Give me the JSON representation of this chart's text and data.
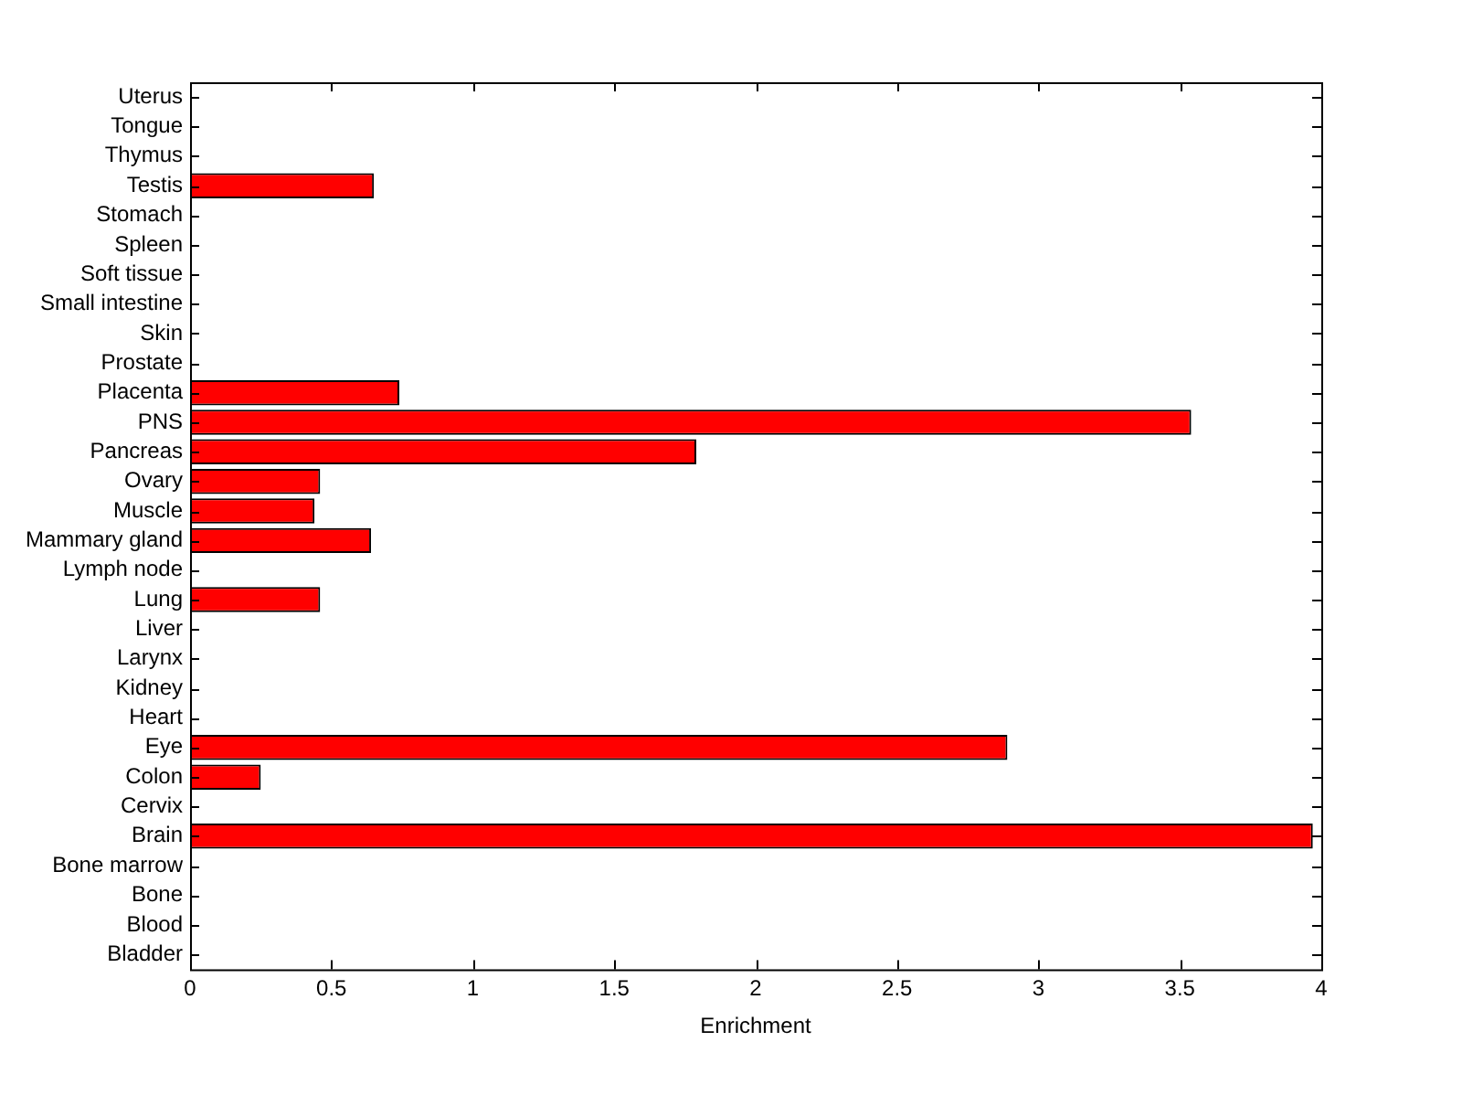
{
  "chart_data": {
    "type": "bar",
    "orientation": "horizontal",
    "xlabel": "Enrichment",
    "categories": [
      "Uterus",
      "Tongue",
      "Thymus",
      "Testis",
      "Stomach",
      "Spleen",
      "Soft tissue",
      "Small intestine",
      "Skin",
      "Prostate",
      "Placenta",
      "PNS",
      "Pancreas",
      "Ovary",
      "Muscle",
      "Mammary gland",
      "Lymph node",
      "Lung",
      "Liver",
      "Larynx",
      "Kidney",
      "Heart",
      "Eye",
      "Colon",
      "Cervix",
      "Brain",
      "Bone marrow",
      "Bone",
      "Blood",
      "Bladder"
    ],
    "values": [
      0,
      0,
      0,
      0.65,
      0,
      0,
      0,
      0,
      0,
      0,
      0.74,
      3.54,
      1.79,
      0.46,
      0.44,
      0.64,
      0,
      0.46,
      0,
      0,
      0,
      0,
      2.89,
      0.25,
      0,
      3.97,
      0,
      0,
      0,
      0
    ],
    "color": "#ff0000",
    "xlim": [
      0,
      4
    ],
    "xticks": [
      0,
      0.5,
      1,
      1.5,
      2,
      2.5,
      3,
      3.5,
      4
    ],
    "grid": false,
    "legend": false
  }
}
